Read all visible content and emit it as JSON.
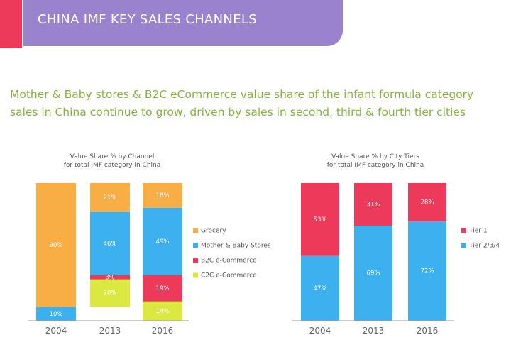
{
  "header": {
    "title": "CHINA IMF KEY SALES CHANNELS"
  },
  "headline": {
    "line1": "Mother & Baby stores & B2C eCommerce value share of the infant formula category",
    "line2": "sales in China continue to grow, driven by sales in second, third & fourth tier cities"
  },
  "colors": {
    "grocery": "#f8ad45",
    "mother_baby": "#3db0f0",
    "b2c": "#ee3a5a",
    "c2c": "#dbe840",
    "tier1": "#ee3a5a",
    "tier234": "#3db0f0",
    "accent_header": "#9b82cf",
    "accent_red": "#ee3a5a",
    "headline": "#86b43c"
  },
  "chart_data": [
    {
      "type": "bar",
      "stacked": true,
      "title_line1": "Value Share % by Channel",
      "title_line2": "for total IMF category in China",
      "categories": [
        "2004",
        "2013",
        "2016"
      ],
      "ylim": [
        0,
        100
      ],
      "legend_position": "right",
      "series": [
        {
          "name": "Grocery",
          "color": "#f8ad45",
          "values": [
            90,
            21,
            18
          ],
          "labels": [
            "90%",
            "21%",
            "18%"
          ]
        },
        {
          "name": "Mother & Baby Stores",
          "color": "#3db0f0",
          "values": [
            10,
            46,
            49
          ],
          "labels": [
            "10%",
            "46%",
            "49%"
          ]
        },
        {
          "name": "B2C e-Commerce",
          "color": "#ee3a5a",
          "values": [
            0,
            3,
            19
          ],
          "labels": [
            "",
            "3%",
            "19%"
          ]
        },
        {
          "name": "C2C e-Commerce",
          "color": "#dbe840",
          "values": [
            0,
            20,
            14
          ],
          "labels": [
            "",
            "20%",
            "14%"
          ]
        }
      ]
    },
    {
      "type": "bar",
      "stacked": true,
      "title_line1": "Value Share % by City Tiers",
      "title_line2": "for total IMF category in China",
      "categories": [
        "2004",
        "2013",
        "2016"
      ],
      "ylim": [
        0,
        100
      ],
      "legend_position": "right",
      "series": [
        {
          "name": "Tier 1",
          "color": "#ee3a5a",
          "values": [
            53,
            31,
            28
          ],
          "labels": [
            "53%",
            "31%",
            "28%"
          ]
        },
        {
          "name": "Tier 2/3/4",
          "color": "#3db0f0",
          "values": [
            47,
            69,
            72
          ],
          "labels": [
            "47%",
            "69%",
            "72%"
          ]
        }
      ]
    }
  ]
}
